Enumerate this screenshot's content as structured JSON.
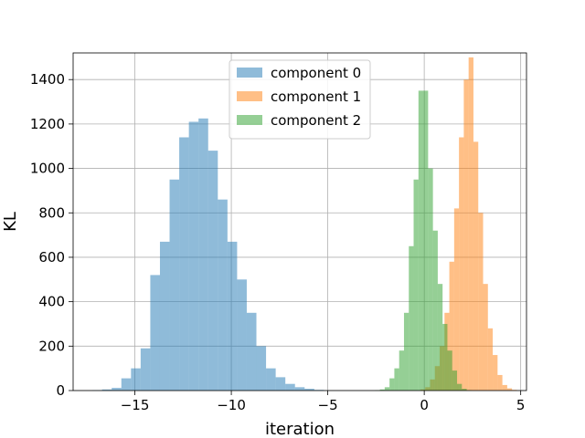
{
  "chart_data": {
    "type": "histogram",
    "title": "",
    "xlabel": "iteration",
    "ylabel": "KL",
    "xlim": [
      -18.2,
      5.3
    ],
    "ylim": [
      0,
      1520
    ],
    "xticks": [
      -15,
      -10,
      -5,
      0,
      5
    ],
    "xtick_labels": [
      "−15",
      "−10",
      "−5",
      "0",
      "5"
    ],
    "yticks": [
      0,
      200,
      400,
      600,
      800,
      1000,
      1200,
      1400
    ],
    "grid": true,
    "legend": {
      "placement": "top-center"
    },
    "series": [
      {
        "name": "component 0",
        "color": "#1f77b4",
        "opacity": 0.5,
        "bin_start": -17.2,
        "bin_width": 0.5,
        "counts": [
          2,
          5,
          12,
          55,
          100,
          190,
          520,
          670,
          950,
          1140,
          1210,
          1225,
          1080,
          860,
          670,
          500,
          350,
          200,
          100,
          60,
          30,
          15,
          8,
          3
        ]
      },
      {
        "name": "component 1",
        "color": "#ff7f0e",
        "opacity": 0.5,
        "bin_start": -0.2,
        "bin_width": 0.25,
        "counts": [
          5,
          15,
          50,
          110,
          200,
          350,
          580,
          820,
          1140,
          1400,
          1500,
          1120,
          800,
          480,
          280,
          160,
          70,
          25,
          10,
          3
        ]
      },
      {
        "name": "component 2",
        "color": "#2ca02c",
        "opacity": 0.5,
        "bin_start": -2.55,
        "bin_width": 0.25,
        "counts": [
          2,
          5,
          15,
          55,
          100,
          180,
          350,
          650,
          950,
          1350,
          1350,
          1000,
          720,
          480,
          300,
          180,
          90,
          30,
          8,
          2
        ]
      }
    ]
  }
}
